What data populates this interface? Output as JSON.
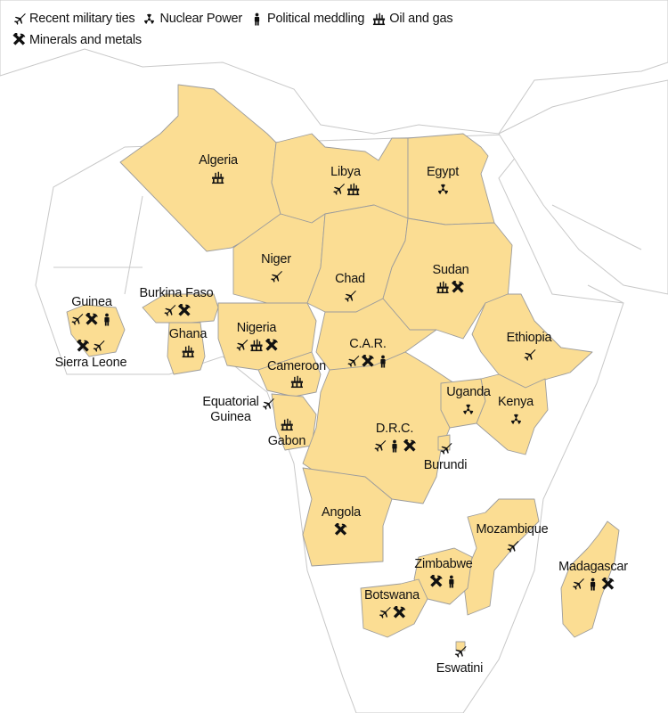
{
  "legend": [
    {
      "icon": "military-jet-icon",
      "label": "Recent military ties"
    },
    {
      "icon": "nuclear-icon",
      "label": "Nuclear Power"
    },
    {
      "icon": "person-icon",
      "label": "Political meddling"
    },
    {
      "icon": "oil-rig-icon",
      "label": "Oil and gas"
    },
    {
      "icon": "pickaxe-hammer-icon",
      "label": "Minerals and metals"
    }
  ],
  "countries": [
    {
      "name": "Algeria",
      "icons": [
        "oil-rig-icon"
      ]
    },
    {
      "name": "Libya",
      "icons": [
        "military-jet-icon",
        "oil-rig-icon"
      ]
    },
    {
      "name": "Egypt",
      "icons": [
        "nuclear-icon"
      ]
    },
    {
      "name": "Niger",
      "icons": [
        "military-jet-icon"
      ]
    },
    {
      "name": "Chad",
      "icons": [
        "military-jet-icon"
      ]
    },
    {
      "name": "Sudan",
      "icons": [
        "oil-rig-icon",
        "pickaxe-hammer-icon"
      ]
    },
    {
      "name": "Guinea",
      "icons": [
        "military-jet-icon",
        "pickaxe-hammer-icon",
        "person-icon"
      ]
    },
    {
      "name": "Burkina Faso",
      "icons": [
        "military-jet-icon",
        "pickaxe-hammer-icon"
      ]
    },
    {
      "name": "Ghana",
      "icons": [
        "oil-rig-icon"
      ]
    },
    {
      "name": "Nigeria",
      "icons": [
        "military-jet-icon",
        "oil-rig-icon",
        "pickaxe-hammer-icon"
      ]
    },
    {
      "name": "Sierra Leone",
      "icons": [
        "pickaxe-hammer-icon",
        "military-jet-icon"
      ]
    },
    {
      "name": "Cameroon",
      "icons": [
        "oil-rig-icon"
      ]
    },
    {
      "name": "C.A.R.",
      "icons": [
        "military-jet-icon",
        "pickaxe-hammer-icon",
        "person-icon"
      ]
    },
    {
      "name": "Ethiopia",
      "icons": [
        "military-jet-icon"
      ]
    },
    {
      "name": "Equatorial Guinea",
      "icons": [
        "military-jet-icon"
      ]
    },
    {
      "name": "Uganda",
      "icons": [
        "nuclear-icon"
      ]
    },
    {
      "name": "Kenya",
      "icons": [
        "nuclear-icon"
      ]
    },
    {
      "name": "Gabon",
      "icons": [
        "oil-rig-icon"
      ]
    },
    {
      "name": "D.R.C.",
      "icons": [
        "military-jet-icon",
        "person-icon",
        "pickaxe-hammer-icon"
      ]
    },
    {
      "name": "Burundi",
      "icons": [
        "military-jet-icon"
      ]
    },
    {
      "name": "Angola",
      "icons": [
        "pickaxe-hammer-icon"
      ]
    },
    {
      "name": "Mozambique",
      "icons": [
        "military-jet-icon"
      ]
    },
    {
      "name": "Zimbabwe",
      "icons": [
        "pickaxe-hammer-icon",
        "person-icon"
      ]
    },
    {
      "name": "Madagascar",
      "icons": [
        "military-jet-icon",
        "person-icon",
        "pickaxe-hammer-icon"
      ]
    },
    {
      "name": "Botswana",
      "icons": [
        "military-jet-icon",
        "pickaxe-hammer-icon"
      ]
    },
    {
      "name": "Eswatini",
      "icons": [
        "military-jet-icon"
      ]
    }
  ],
  "colors": {
    "highlight": "#fbdd93",
    "border": "#9c9c9c",
    "land": "#ffffff"
  }
}
